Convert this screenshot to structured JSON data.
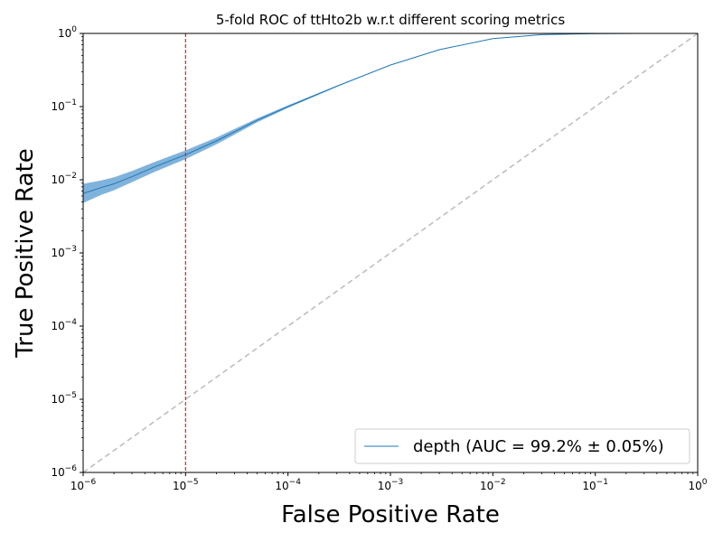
{
  "chart_data": {
    "type": "line",
    "title": "5-fold ROC of ttHto2b w.r.t different scoring metrics",
    "xlabel": "False Positive Rate",
    "ylabel": "True Positive Rate",
    "xscale": "log",
    "yscale": "log",
    "xlim": [
      1e-06,
      1
    ],
    "ylim": [
      1e-06,
      1
    ],
    "grid": false,
    "legend_position": "lower-right",
    "x_ticks": [
      {
        "value": 1e-06,
        "base": "10",
        "exp": "−6"
      },
      {
        "value": 1e-05,
        "base": "10",
        "exp": "−5"
      },
      {
        "value": 0.0001,
        "base": "10",
        "exp": "−4"
      },
      {
        "value": 0.001,
        "base": "10",
        "exp": "−3"
      },
      {
        "value": 0.01,
        "base": "10",
        "exp": "−2"
      },
      {
        "value": 0.1,
        "base": "10",
        "exp": "−1"
      },
      {
        "value": 1,
        "base": "10",
        "exp": "0"
      }
    ],
    "y_ticks": [
      {
        "value": 1e-06,
        "base": "10",
        "exp": "−6"
      },
      {
        "value": 1e-05,
        "base": "10",
        "exp": "−5"
      },
      {
        "value": 0.0001,
        "base": "10",
        "exp": "−4"
      },
      {
        "value": 0.001,
        "base": "10",
        "exp": "−3"
      },
      {
        "value": 0.01,
        "base": "10",
        "exp": "−2"
      },
      {
        "value": 0.1,
        "base": "10",
        "exp": "−1"
      },
      {
        "value": 1,
        "base": "10",
        "exp": "0"
      }
    ],
    "series": [
      {
        "name": "depth (AUC = 99.2% ± 0.05%)",
        "color": "#1f77b4",
        "band_color": "#6aa6d6",
        "x": [
          1e-06,
          1.5e-06,
          2e-06,
          3e-06,
          5e-06,
          1e-05,
          2e-05,
          5e-05,
          0.0001,
          0.0003,
          0.001,
          0.003,
          0.01,
          0.03,
          0.1,
          0.3,
          1
        ],
        "y": [
          0.0065,
          0.0078,
          0.0088,
          0.011,
          0.015,
          0.022,
          0.034,
          0.065,
          0.1,
          0.19,
          0.37,
          0.6,
          0.85,
          0.96,
          0.995,
          0.999,
          1.0
        ],
        "y_lo": [
          0.0048,
          0.0062,
          0.0072,
          0.0093,
          0.0128,
          0.0192,
          0.0305,
          0.061,
          0.096,
          0.186,
          0.368,
          0.598,
          0.849,
          0.96,
          0.995,
          0.999,
          1.0
        ],
        "y_hi": [
          0.0088,
          0.0098,
          0.0108,
          0.0132,
          0.0175,
          0.0252,
          0.0378,
          0.069,
          0.104,
          0.194,
          0.372,
          0.602,
          0.851,
          0.96,
          0.995,
          0.999,
          1.0
        ]
      }
    ],
    "reference_line": {
      "x": [
        1e-06,
        1
      ],
      "y": [
        1e-06,
        1
      ],
      "color": "#bfbfbf",
      "style": "dashed"
    },
    "vertical_line": {
      "x": 1e-05,
      "color": "#d62728",
      "style": "dashed"
    }
  }
}
